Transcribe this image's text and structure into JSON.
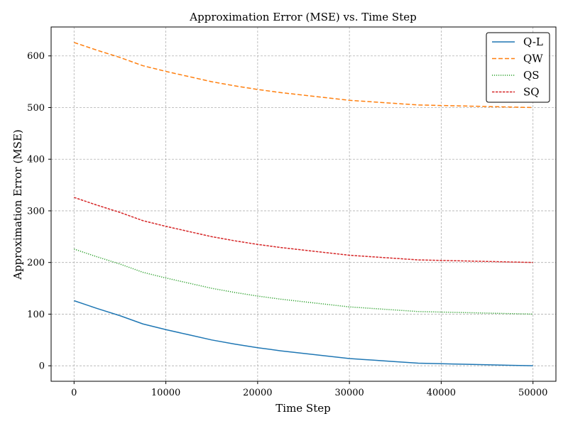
{
  "chart_data": {
    "type": "line",
    "title": "Approximation Error (MSE) vs. Time Step",
    "xlabel": "Time Step",
    "ylabel": "Approximation Error (MSE)",
    "xlim": [
      -2500,
      52500
    ],
    "ylim": [
      -30,
      656
    ],
    "xticks": [
      0,
      10000,
      20000,
      30000,
      40000,
      50000
    ],
    "yticks": [
      0,
      100,
      200,
      300,
      400,
      500,
      600
    ],
    "grid": true,
    "legend_position": "top-right",
    "x": [
      0,
      2500,
      5000,
      7500,
      10000,
      12500,
      15000,
      17500,
      20000,
      22500,
      25000,
      27500,
      30000,
      32500,
      35000,
      37500,
      40000,
      42500,
      45000,
      47500,
      50000
    ],
    "series": [
      {
        "name": "Q-L",
        "color": "#1f77b4",
        "dash": "solid",
        "values": [
          126,
          111,
          97,
          81,
          70,
          60,
          50,
          42,
          35,
          29,
          24,
          19,
          14,
          11,
          8,
          5,
          4,
          3,
          2,
          1,
          0
        ]
      },
      {
        "name": "QW",
        "color": "#ff7f0e",
        "dash": "dashed",
        "values": [
          626,
          611,
          597,
          581,
          570,
          560,
          550,
          542,
          535,
          529,
          524,
          519,
          514,
          511,
          508,
          505,
          504,
          503,
          502,
          501,
          500
        ]
      },
      {
        "name": "QS",
        "color": "#2ca02c",
        "dash": "dotted",
        "values": [
          226,
          211,
          197,
          181,
          170,
          160,
          150,
          142,
          135,
          129,
          124,
          119,
          114,
          111,
          108,
          105,
          104,
          103,
          102,
          101,
          100
        ]
      },
      {
        "name": "SQ",
        "color": "#d62728",
        "dash": "densely-dashed",
        "values": [
          326,
          311,
          297,
          281,
          270,
          260,
          250,
          242,
          235,
          229,
          224,
          219,
          214,
          211,
          208,
          205,
          204,
          203,
          202,
          201,
          200
        ]
      }
    ]
  }
}
